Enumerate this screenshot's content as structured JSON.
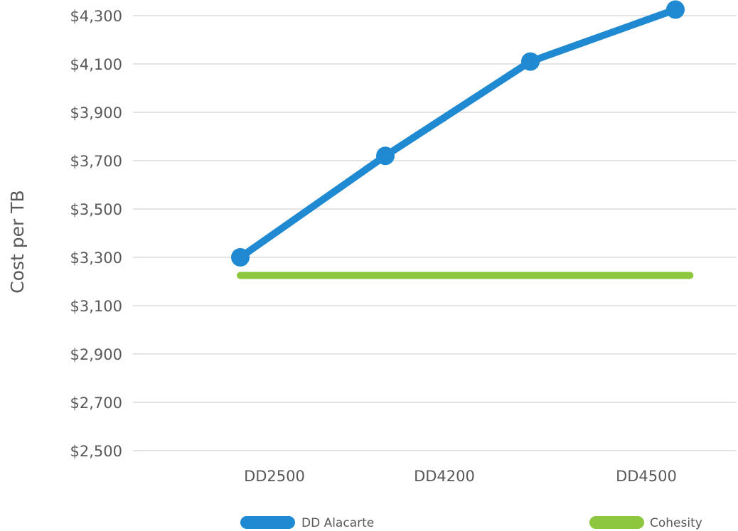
{
  "chart_data": {
    "type": "line",
    "title": "",
    "xlabel": "",
    "ylabel": "Cost per TB",
    "ylim": [
      2500,
      4300
    ],
    "yticks": [
      "$2,500",
      "$2,700",
      "$2,900",
      "$3,100",
      "$3,300",
      "$3,500",
      "$3,700",
      "$3,900",
      "$4,100",
      "$4,300"
    ],
    "ytick_values": [
      2500,
      2700,
      2900,
      3100,
      3300,
      3500,
      3700,
      3900,
      4100,
      4300
    ],
    "x_tick_labels": [
      "DD2500",
      "DD4200",
      "DD4500"
    ],
    "grid": true,
    "legend_position": "bottom",
    "series": [
      {
        "name": "DD Alacarte",
        "color": "#1f8ad1",
        "x": [
          0,
          1,
          2,
          3
        ],
        "values": [
          3300,
          3720,
          4110,
          4325
        ]
      },
      {
        "name": "Cohesity",
        "color": "#8dc63f",
        "x": [
          0,
          3.1
        ],
        "values": [
          3225,
          3225
        ]
      }
    ]
  }
}
